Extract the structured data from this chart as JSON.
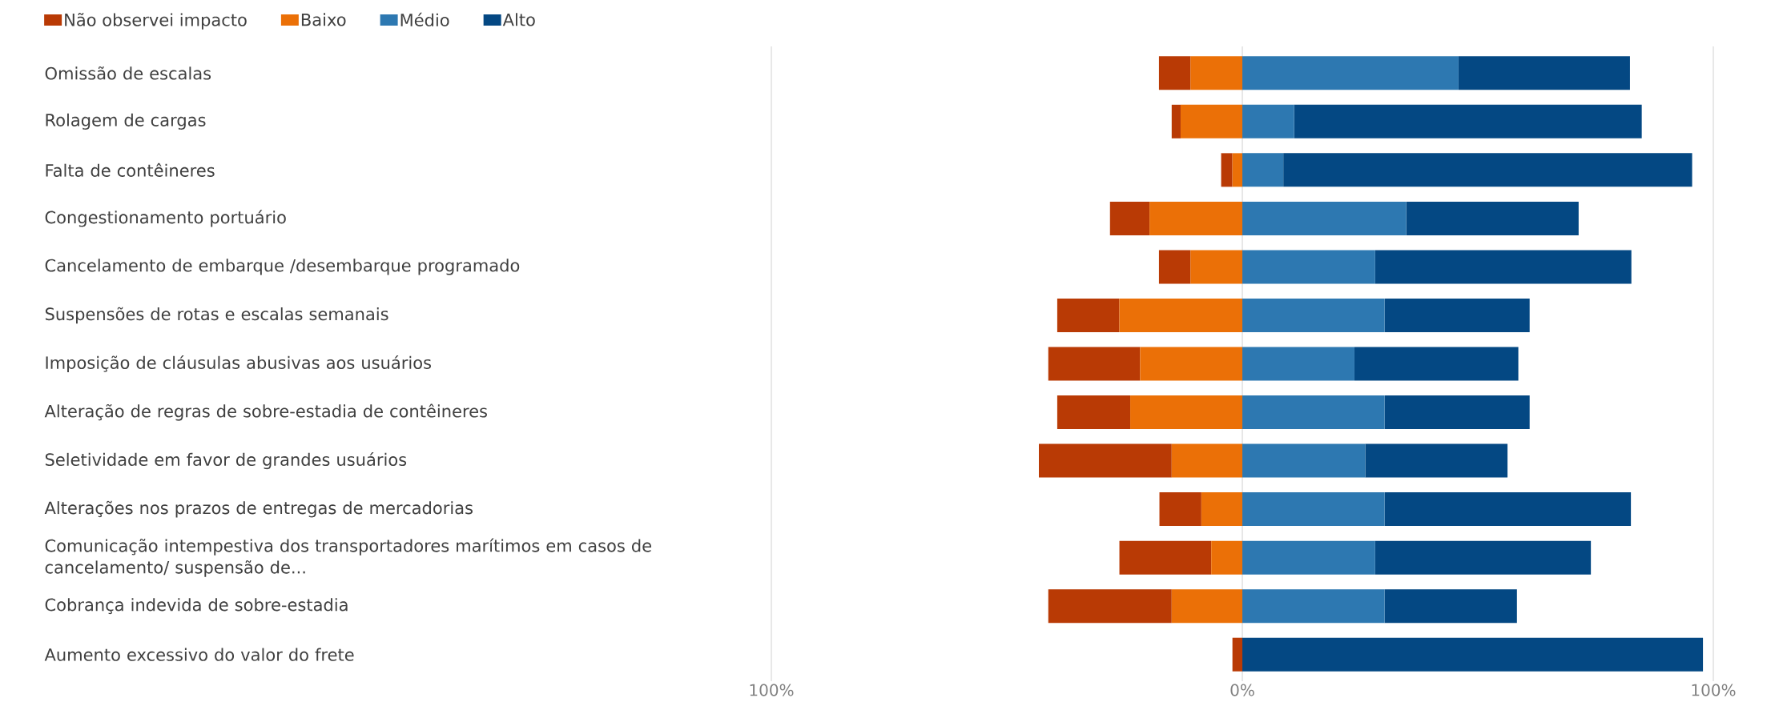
{
  "chart_data": {
    "type": "bar",
    "orientation": "horizontal",
    "stacked": true,
    "categories": [
      "Omissão de escalas",
      "Rolagem de cargas",
      "Falta de contêineres",
      "Congestionamento portuário",
      "Cancelamento de embarque /desembarque programado",
      "Suspensões de rotas e escalas semanais",
      "Imposição de cláusulas abusivas aos usuários",
      "Alteração de regras de sobre-estadia de contêineres",
      "Seletividade em favor de grandes usuários",
      "Alterações nos prazos de entregas de mercadorias",
      "Comunicação intempestiva dos transportadores marítimos em casos de cancelamento/ suspensão de...",
      "Cobrança indevida de sobre-estadia",
      "Aumento excessivo do valor do frete"
    ],
    "series": [
      {
        "name": "Baixo",
        "color": "#eb7007",
        "values": [
          -11,
          -13.1,
          -2.1,
          -19.7,
          -11,
          -26.1,
          -21.7,
          -23.8,
          -15,
          -8.7,
          -6.6,
          -15,
          0
        ]
      },
      {
        "name": "Não observei impacto",
        "color": "#b93a05",
        "values": [
          -6.7,
          -1.9,
          -2.4,
          -8.4,
          -6.7,
          -13.2,
          -19.5,
          -15.5,
          -28.2,
          -8.9,
          -19.5,
          -26.2,
          -2.1
        ]
      },
      {
        "name": "Médio",
        "color": "#2d78b1",
        "values": [
          45.9,
          11,
          8.7,
          34.8,
          28.2,
          30.2,
          23.8,
          30.2,
          26.1,
          30.2,
          28.2,
          30.2,
          0
        ]
      },
      {
        "name": "Alto",
        "color": "#044883",
        "values": [
          36.4,
          73.8,
          86.8,
          36.6,
          54.4,
          30.8,
          34.8,
          30.8,
          30.2,
          52.3,
          45.8,
          28.1,
          97.8
        ]
      }
    ],
    "xlim": [
      -100,
      100
    ],
    "xticks": [
      {
        "value": -100,
        "label": "100%"
      },
      {
        "value": 0,
        "label": "0%"
      },
      {
        "value": 100,
        "label": "100%"
      }
    ],
    "grid": "x",
    "legend": "top left"
  }
}
